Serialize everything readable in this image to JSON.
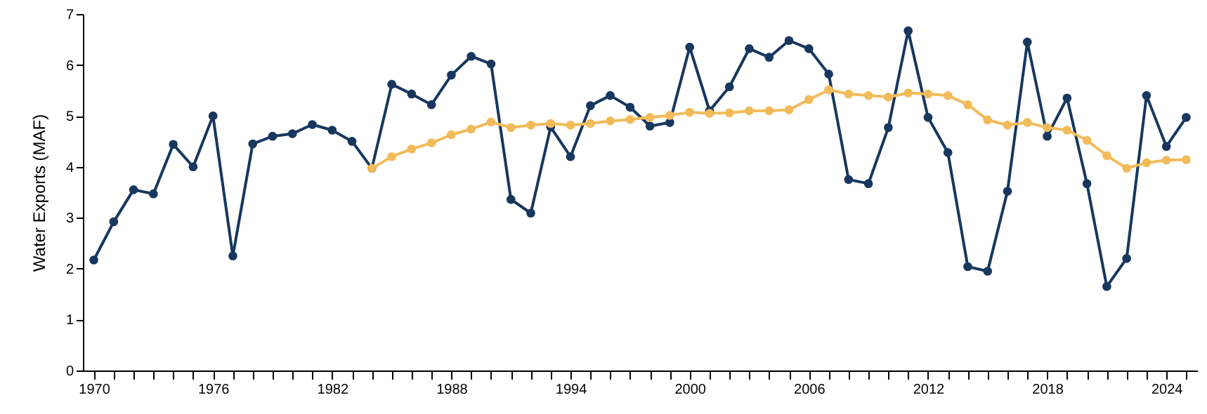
{
  "chart_data": {
    "type": "line",
    "ylabel": "Water Exports (MAF)",
    "marker": "circle",
    "x": [
      1970,
      1971,
      1972,
      1973,
      1974,
      1975,
      1976,
      1977,
      1978,
      1979,
      1980,
      1981,
      1982,
      1983,
      1984,
      1985,
      1986,
      1987,
      1988,
      1989,
      1990,
      1991,
      1992,
      1993,
      1994,
      1995,
      1996,
      1997,
      1998,
      1999,
      2000,
      2001,
      2002,
      2003,
      2004,
      2005,
      2006,
      2007,
      2008,
      2009,
      2010,
      2011,
      2012,
      2013,
      2014,
      2015,
      2016,
      2017,
      2018,
      2019,
      2020,
      2021,
      2022,
      2023,
      2024,
      2025
    ],
    "series": [
      {
        "color": "#17375e",
        "values": [
          2.17,
          2.92,
          3.55,
          3.47,
          4.44,
          4.0,
          5.0,
          2.25,
          4.45,
          4.6,
          4.65,
          4.83,
          4.72,
          4.5,
          3.97,
          5.62,
          5.43,
          5.22,
          5.8,
          6.17,
          6.02,
          3.36,
          3.09,
          4.78,
          4.2,
          5.2,
          5.4,
          5.17,
          4.8,
          4.87,
          6.35,
          5.1,
          5.57,
          6.32,
          6.15,
          6.48,
          6.32,
          5.82,
          3.75,
          3.67,
          4.77,
          6.67,
          4.97,
          4.28,
          2.04,
          1.95,
          3.52,
          6.45,
          4.6,
          5.35,
          3.67,
          1.65,
          2.2,
          5.4,
          4.4,
          4.97
        ]
      },
      {
        "color": "#f2bb5a",
        "values": [
          null,
          null,
          null,
          null,
          null,
          null,
          null,
          null,
          null,
          null,
          null,
          null,
          null,
          null,
          3.97,
          4.2,
          4.35,
          4.47,
          4.63,
          4.74,
          4.88,
          4.77,
          4.82,
          4.85,
          4.82,
          4.85,
          4.9,
          4.93,
          4.97,
          5.01,
          5.07,
          5.05,
          5.06,
          5.1,
          5.1,
          5.12,
          5.32,
          5.51,
          5.43,
          5.4,
          5.37,
          5.45,
          5.43,
          5.4,
          5.22,
          4.92,
          4.82,
          4.87,
          4.77,
          4.72,
          4.52,
          4.22,
          3.97,
          4.08,
          4.13,
          4.14
        ]
      }
    ],
    "xlim": [
      1969.45,
      2025.55
    ],
    "xticks": [
      1970,
      {
        "value": 1971,
        "label": null
      },
      {
        "value": 1972,
        "label": null
      },
      {
        "value": 1973,
        "label": null
      },
      {
        "value": 1974,
        "label": null
      },
      {
        "value": 1975,
        "label": null
      },
      1976,
      {
        "value": 1977,
        "label": null
      },
      {
        "value": 1978,
        "label": null
      },
      {
        "value": 1979,
        "label": null
      },
      {
        "value": 1980,
        "label": null
      },
      {
        "value": 1981,
        "label": null
      },
      1982,
      {
        "value": 1983,
        "label": null
      },
      {
        "value": 1984,
        "label": null
      },
      {
        "value": 1985,
        "label": null
      },
      {
        "value": 1986,
        "label": null
      },
      {
        "value": 1987,
        "label": null
      },
      1988,
      {
        "value": 1989,
        "label": null
      },
      {
        "value": 1990,
        "label": null
      },
      {
        "value": 1991,
        "label": null
      },
      {
        "value": 1992,
        "label": null
      },
      {
        "value": 1993,
        "label": null
      },
      1994,
      {
        "value": 1995,
        "label": null
      },
      {
        "value": 1996,
        "label": null
      },
      {
        "value": 1997,
        "label": null
      },
      {
        "value": 1998,
        "label": null
      },
      {
        "value": 1999,
        "label": null
      },
      2000,
      {
        "value": 2001,
        "label": null
      },
      {
        "value": 2002,
        "label": null
      },
      {
        "value": 2003,
        "label": null
      },
      {
        "value": 2004,
        "label": null
      },
      {
        "value": 2005,
        "label": null
      },
      2006,
      {
        "value": 2007,
        "label": null
      },
      {
        "value": 2008,
        "label": null
      },
      {
        "value": 2009,
        "label": null
      },
      {
        "value": 2010,
        "label": null
      },
      {
        "value": 2011,
        "label": null
      },
      2012,
      {
        "value": 2013,
        "label": null
      },
      {
        "value": 2014,
        "label": null
      },
      {
        "value": 2015,
        "label": null
      },
      {
        "value": 2016,
        "label": null
      },
      {
        "value": 2017,
        "label": null
      },
      2018,
      {
        "value": 2019,
        "label": null
      },
      {
        "value": 2020,
        "label": null
      },
      {
        "value": 2021,
        "label": null
      },
      {
        "value": 2022,
        "label": null
      },
      {
        "value": 2023,
        "label": null
      },
      2024,
      {
        "value": 2025,
        "label": null
      }
    ],
    "ylim": [
      0,
      7
    ],
    "yticks": [
      0,
      1,
      2,
      3,
      4,
      5,
      6,
      7
    ]
  }
}
